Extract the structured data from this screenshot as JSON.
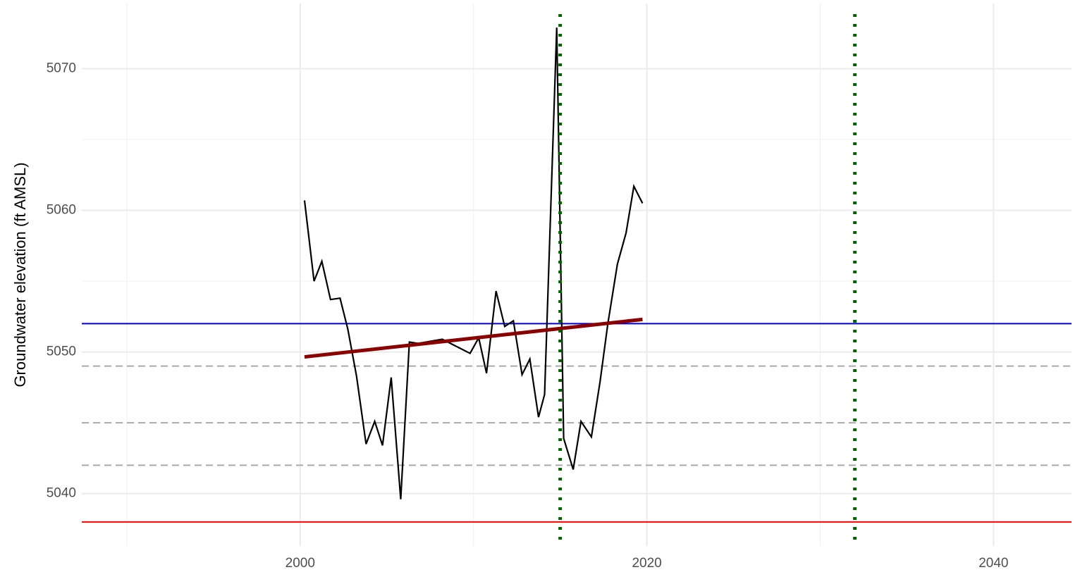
{
  "chart_data": {
    "type": "line",
    "y_label": "Groundwater elevation (ft AMSL)",
    "xlim": [
      1987.4,
      2044.5
    ],
    "ylim": [
      5036.3,
      5074.6
    ],
    "xticks": [
      2000,
      2020,
      2040
    ],
    "yticks": [
      5040,
      5050,
      5060,
      5070
    ],
    "x_minor_grid": [
      1990,
      2010,
      2030
    ],
    "y_minor_grid": [
      5045,
      5055,
      5065
    ],
    "grid": true,
    "series": [
      {
        "color": "#000000",
        "x": [
          2000.25,
          2000.8,
          2001.25,
          2001.75,
          2002.3,
          2002.75,
          2003.25,
          2003.8,
          2004.3,
          2004.75,
          2005.25,
          2005.8,
          2006.3,
          2006.8,
          2008.2,
          2009.8,
          2010.3,
          2010.75,
          2011.3,
          2011.8,
          2012.3,
          2012.8,
          2013.25,
          2013.75,
          2014.1,
          2014.8,
          2015.2,
          2015.75,
          2016.2,
          2016.8,
          2017.3,
          2017.75,
          2018.3,
          2018.8,
          2019.25,
          2019.75
        ],
        "values": [
          5060.7,
          5055.0,
          5056.4,
          5053.7,
          5053.8,
          5051.6,
          5048.3,
          5043.5,
          5045.1,
          5043.4,
          5048.2,
          5039.6,
          5050.7,
          5050.6,
          5050.9,
          5049.9,
          5051.0,
          5048.5,
          5054.3,
          5051.8,
          5052.2,
          5048.4,
          5049.5,
          5045.4,
          5047.0,
          5072.9,
          5043.9,
          5041.7,
          5045.1,
          5044.0,
          5047.9,
          5052.0,
          5056.2,
          5058.4,
          5061.7,
          5060.5
        ]
      },
      {
        "color": "#8b0000",
        "x": [
          2000.25,
          2019.75
        ],
        "values": [
          5049.65,
          5052.3
        ]
      }
    ],
    "hlines": [
      {
        "value": 5052,
        "color": "#0000cd",
        "style": "solid"
      },
      {
        "value": 5038,
        "color": "#ff0000",
        "style": "solid"
      },
      {
        "value": 5049,
        "color": "#a9a9a9",
        "style": "dashed"
      },
      {
        "value": 5045,
        "color": "#a9a9a9",
        "style": "dashed"
      },
      {
        "value": 5042,
        "color": "#a9a9a9",
        "style": "dashed"
      }
    ],
    "vlines": [
      {
        "value": 2015,
        "color": "#006400",
        "style": "dotted"
      },
      {
        "value": 2032,
        "color": "#006400",
        "style": "dotted"
      }
    ]
  }
}
